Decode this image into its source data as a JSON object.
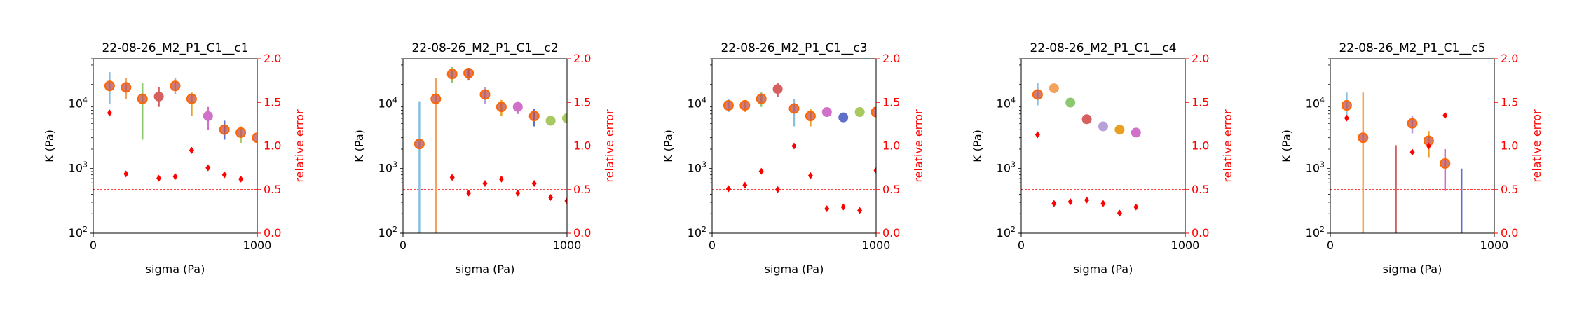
{
  "figure": {
    "colors": {
      "axis": "#000000",
      "error_axis": "#ff0000",
      "threshold": "#ff0000",
      "rel_marker": "#ff0000",
      "point_edge": "#ff6600",
      "point_fill": "#c0504d",
      "palette": [
        "#88c0e0",
        "#f5a35a",
        "#8cc870",
        "#d65f5f",
        "#b8a0d8",
        "#d070c8",
        "#a8c860",
        "#6070c8",
        "#e8a020",
        "#f0b070"
      ]
    }
  },
  "chart_data": [
    {
      "type": "scatter",
      "title": "22-08-26_M2_P1_C1__c1",
      "xlabel": "sigma (Pa)",
      "ylabel": "K (Pa)",
      "y2label": "relative error",
      "xlim": [
        0,
        1000
      ],
      "ylim": [
        100,
        50000
      ],
      "yscale": "log",
      "y2lim": [
        0,
        2
      ],
      "xticks": [
        0,
        1000
      ],
      "yticks": [
        "10^2",
        "10^3",
        "10^4"
      ],
      "y2ticks": [
        "0.0",
        "0.5",
        "1.0",
        "1.5",
        "2.0"
      ],
      "threshold": 0.5,
      "points": [
        {
          "x": 100,
          "K": 19000,
          "lo": 10000,
          "hi": 31000,
          "rel": 1.38,
          "c": "#88c0e0",
          "ring": true
        },
        {
          "x": 200,
          "K": 18000,
          "lo": 12000,
          "hi": 25000,
          "rel": 0.68,
          "c": "#f5a35a",
          "ring": true
        },
        {
          "x": 300,
          "K": 12000,
          "lo": 2800,
          "hi": 21000,
          "rel": null,
          "c": "#8cc870",
          "ring": true
        },
        {
          "x": 400,
          "K": 13000,
          "lo": 9000,
          "hi": 18000,
          "rel": 0.63,
          "c": "#d65f5f",
          "ring": false
        },
        {
          "x": 500,
          "K": 19000,
          "lo": 14000,
          "hi": 25000,
          "rel": 0.65,
          "c": "#b8a0d8",
          "ring": true
        },
        {
          "x": 600,
          "K": 12000,
          "lo": 6500,
          "hi": 15000,
          "rel": 0.95,
          "c": "#e8a020",
          "ring": true
        },
        {
          "x": 600,
          "K": null,
          "lo": null,
          "hi": null,
          "rel": 0.95,
          "c": "#e8a020",
          "ring": false
        },
        {
          "x": 700,
          "K": 6500,
          "lo": 4000,
          "hi": 9000,
          "rel": 0.75,
          "c": "#d070c8",
          "ring": false
        },
        {
          "x": 800,
          "K": 4000,
          "lo": 2800,
          "hi": 5500,
          "rel": 0.67,
          "c": "#6070c8",
          "ring": true
        },
        {
          "x": 900,
          "K": 3600,
          "lo": 2500,
          "hi": 4500,
          "rel": 0.62,
          "c": "#a8c860",
          "ring": true
        },
        {
          "x": 1000,
          "K": 3000,
          "lo": null,
          "hi": null,
          "rel": null,
          "c": "#e8a020",
          "ring": true
        }
      ]
    },
    {
      "type": "scatter",
      "title": "22-08-26_M2_P1_C1__c2",
      "xlabel": "sigma (Pa)",
      "ylabel": "K (Pa)",
      "y2label": "relative error",
      "xlim": [
        0,
        1000
      ],
      "ylim": [
        100,
        50000
      ],
      "yscale": "log",
      "y2lim": [
        0,
        2
      ],
      "xticks": [
        0,
        1000
      ],
      "yticks": [
        "10^2",
        "10^3",
        "10^4"
      ],
      "y2ticks": [
        "0.0",
        "0.5",
        "1.0",
        "1.5",
        "2.0"
      ],
      "threshold": 0.5,
      "points": [
        {
          "x": 100,
          "K": 2400,
          "lo": 100,
          "hi": 11000,
          "rel": null,
          "c": "#88c0e0",
          "ring": true
        },
        {
          "x": 200,
          "K": 12000,
          "lo": 100,
          "hi": 25000,
          "rel": null,
          "c": "#f5a35a",
          "ring": true
        },
        {
          "x": 300,
          "K": 29000,
          "lo": 21000,
          "hi": 37000,
          "rel": 0.64,
          "c": "#8cc870",
          "ring": true
        },
        {
          "x": 400,
          "K": 30000,
          "lo": 23000,
          "hi": 36000,
          "rel": 0.46,
          "c": "#d65f5f",
          "ring": true
        },
        {
          "x": 500,
          "K": 14000,
          "lo": 10000,
          "hi": 18000,
          "rel": 0.57,
          "c": "#b8a0d8",
          "ring": true
        },
        {
          "x": 600,
          "K": 9000,
          "lo": 6500,
          "hi": 11500,
          "rel": 0.62,
          "c": "#e8a020",
          "ring": true
        },
        {
          "x": 700,
          "K": 9000,
          "lo": 7000,
          "hi": 11000,
          "rel": 0.46,
          "c": "#d070c8",
          "ring": false
        },
        {
          "x": 800,
          "K": 6500,
          "lo": 4500,
          "hi": 8500,
          "rel": 0.57,
          "c": "#6070c8",
          "ring": true
        },
        {
          "x": 900,
          "K": 5500,
          "lo": null,
          "hi": null,
          "rel": 0.41,
          "c": "#a8c860",
          "ring": false
        },
        {
          "x": 1000,
          "K": 6000,
          "lo": null,
          "hi": null,
          "rel": 0.37,
          "c": "#a8c860",
          "ring": false
        }
      ]
    },
    {
      "type": "scatter",
      "title": "22-08-26_M2_P1_C1__c3",
      "xlabel": "sigma (Pa)",
      "ylabel": "K (Pa)",
      "y2label": "relative error",
      "xlim": [
        0,
        1000
      ],
      "ylim": [
        100,
        50000
      ],
      "yscale": "log",
      "y2lim": [
        0,
        2
      ],
      "xticks": [
        0,
        1000
      ],
      "yticks": [
        "10^2",
        "10^3",
        "10^4"
      ],
      "y2ticks": [
        "0.0",
        "0.5",
        "1.0",
        "1.5",
        "2.0"
      ],
      "threshold": 0.5,
      "points": [
        {
          "x": 100,
          "K": 9500,
          "lo": 7500,
          "hi": 12000,
          "rel": 0.51,
          "c": "#88c0e0",
          "ring": true
        },
        {
          "x": 200,
          "K": 9500,
          "lo": 7500,
          "hi": 11500,
          "rel": 0.55,
          "c": "#f5a35a",
          "ring": true
        },
        {
          "x": 300,
          "K": 12000,
          "lo": 9000,
          "hi": 15000,
          "rel": 0.71,
          "c": "#8cc870",
          "ring": true
        },
        {
          "x": 400,
          "K": 17000,
          "lo": 13000,
          "hi": 21000,
          "rel": 0.5,
          "c": "#d65f5f",
          "ring": false
        },
        {
          "x": 500,
          "K": 8500,
          "lo": 4500,
          "hi": 12000,
          "rel": 1.0,
          "c": "#88c0e0",
          "ring": true
        },
        {
          "x": 600,
          "K": 6500,
          "lo": 4500,
          "hi": 8500,
          "rel": 0.66,
          "c": "#e8a020",
          "ring": true
        },
        {
          "x": 700,
          "K": 7500,
          "lo": null,
          "hi": null,
          "rel": 0.28,
          "c": "#d070c8",
          "ring": false
        },
        {
          "x": 800,
          "K": 6200,
          "lo": null,
          "hi": null,
          "rel": 0.3,
          "c": "#6070c8",
          "ring": false
        },
        {
          "x": 900,
          "K": 7500,
          "lo": null,
          "hi": null,
          "rel": 0.26,
          "c": "#a8c860",
          "ring": false
        },
        {
          "x": 1000,
          "K": 7500,
          "lo": null,
          "hi": null,
          "rel": 0.72,
          "c": "#e8a020",
          "ring": true
        }
      ]
    },
    {
      "type": "scatter",
      "title": "22-08-26_M2_P1_C1__c4",
      "xlabel": "sigma (Pa)",
      "ylabel": "K (Pa)",
      "y2label": "relative error",
      "xlim": [
        0,
        1000
      ],
      "ylim": [
        100,
        50000
      ],
      "yscale": "log",
      "y2lim": [
        0,
        2
      ],
      "xticks": [
        0,
        1000
      ],
      "yticks": [
        "10^2",
        "10^3",
        "10^4"
      ],
      "y2ticks": [
        "0.0",
        "0.5",
        "1.0",
        "1.5",
        "2.0"
      ],
      "threshold": 0.5,
      "points": [
        {
          "x": 100,
          "K": 14000,
          "lo": 9500,
          "hi": 21000,
          "rel": 1.13,
          "c": "#88c0e0",
          "ring": true
        },
        {
          "x": 200,
          "K": 17500,
          "lo": null,
          "hi": null,
          "rel": 0.34,
          "c": "#f5a35a",
          "ring": false
        },
        {
          "x": 300,
          "K": 10500,
          "lo": null,
          "hi": null,
          "rel": 0.36,
          "c": "#8cc870",
          "ring": false
        },
        {
          "x": 400,
          "K": 5800,
          "lo": null,
          "hi": null,
          "rel": 0.38,
          "c": "#d65f5f",
          "ring": false
        },
        {
          "x": 500,
          "K": 4500,
          "lo": null,
          "hi": null,
          "rel": 0.34,
          "c": "#b8a0d8",
          "ring": false
        },
        {
          "x": 600,
          "K": 4000,
          "lo": null,
          "hi": null,
          "rel": 0.23,
          "c": "#e8a020",
          "ring": false
        },
        {
          "x": 700,
          "K": 3600,
          "lo": null,
          "hi": null,
          "rel": 0.3,
          "c": "#d070c8",
          "ring": false
        }
      ]
    },
    {
      "type": "scatter",
      "title": "22-08-26_M2_P1_C1__c5",
      "xlabel": "sigma (Pa)",
      "ylabel": "K (Pa)",
      "y2label": "relative error",
      "xlim": [
        0,
        1000
      ],
      "ylim": [
        100,
        50000
      ],
      "yscale": "log",
      "y2lim": [
        0,
        2
      ],
      "xticks": [
        0,
        1000
      ],
      "yticks": [
        "10^2",
        "10^3",
        "10^4"
      ],
      "y2ticks": [
        "0.0",
        "0.5",
        "1.0",
        "1.5",
        "2.0"
      ],
      "threshold": 0.5,
      "points": [
        {
          "x": 100,
          "K": 9500,
          "lo": 6000,
          "hi": 15000,
          "rel": 1.32,
          "c": "#88c0e0",
          "ring": true
        },
        {
          "x": 200,
          "K": 3000,
          "lo": 100,
          "hi": 15000,
          "rel": null,
          "c": "#f5a35a",
          "ring": true
        },
        {
          "x": 400,
          "K": null,
          "lo": 100,
          "hi": 2300,
          "rel": null,
          "c": "#d65f5f",
          "ring": false
        },
        {
          "x": 500,
          "K": 5000,
          "lo": 3500,
          "hi": 6500,
          "rel": 0.93,
          "c": "#b8a0d8",
          "ring": true
        },
        {
          "x": 600,
          "K": 2700,
          "lo": 1500,
          "hi": 3800,
          "rel": 1.0,
          "c": "#e8a020",
          "ring": true
        },
        {
          "x": 700,
          "K": 1200,
          "lo": 450,
          "hi": 2000,
          "rel": 1.35,
          "c": "#d070c8",
          "ring": true
        },
        {
          "x": 800,
          "K": null,
          "lo": 100,
          "hi": 1000,
          "rel": null,
          "c": "#6070c8",
          "ring": false
        }
      ]
    }
  ]
}
